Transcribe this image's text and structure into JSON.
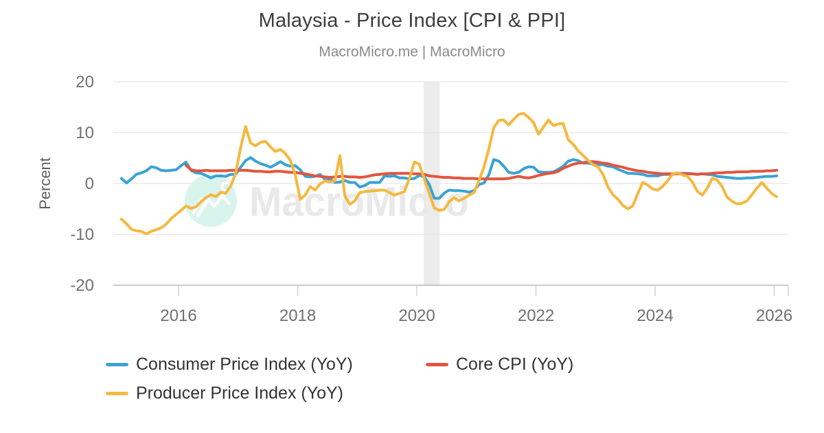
{
  "header": {
    "title": "Malaysia - Price Index [CPI & PPI]",
    "subtitle": "MacroMicro.me | MacroMicro"
  },
  "watermark": {
    "text": "MacroMicro"
  },
  "chart_data": {
    "type": "line",
    "title": "Malaysia - Price Index [CPI & PPI]",
    "xlabel": "",
    "ylabel": "Percent",
    "ylim": [
      -20,
      20
    ],
    "yticks": [
      20,
      10,
      0,
      -10,
      -20
    ],
    "xticks": [
      2016,
      2018,
      2020,
      2022,
      2024,
      2026
    ],
    "grid": true,
    "legend_position": "bottom",
    "x_unit": "decimal_year_monthly",
    "x_step": 0.0833333,
    "recession_band": {
      "from": 2020.115,
      "to": 2020.385,
      "color": "#ececec"
    },
    "series": [
      {
        "name": "Consumer Price Index (YoY)",
        "color": "#3BA2D4",
        "start": 2015.042,
        "values": [
          1.0,
          0.1,
          0.9,
          1.8,
          2.1,
          2.5,
          3.3,
          3.1,
          2.6,
          2.5,
          2.6,
          2.7,
          3.5,
          4.2,
          2.6,
          2.1,
          2.0,
          1.6,
          1.1,
          1.5,
          1.5,
          1.4,
          1.8,
          1.8,
          3.2,
          4.5,
          5.1,
          4.4,
          3.9,
          3.6,
          3.2,
          3.7,
          4.3,
          3.7,
          3.4,
          3.5,
          2.7,
          1.4,
          1.3,
          1.4,
          1.8,
          0.8,
          0.9,
          0.2,
          0.3,
          0.6,
          0.2,
          0.2,
          -0.7,
          -0.4,
          0.2,
          0.2,
          0.2,
          1.5,
          1.4,
          1.5,
          1.1,
          1.1,
          0.9,
          1.0,
          1.6,
          1.3,
          -0.2,
          -2.9,
          -2.9,
          -1.9,
          -1.3,
          -1.4,
          -1.4,
          -1.5,
          -1.7,
          -1.4,
          -0.2,
          0.1,
          1.7,
          4.7,
          4.4,
          3.4,
          2.2,
          2.0,
          2.2,
          2.9,
          3.3,
          3.2,
          2.3,
          2.2,
          2.2,
          2.3,
          2.8,
          3.4,
          4.4,
          4.7,
          4.5,
          4.0,
          4.0,
          3.8,
          3.7,
          3.7,
          3.4,
          3.3,
          2.8,
          2.4,
          2.0,
          2.0,
          1.9,
          1.8,
          1.5,
          1.5,
          1.5,
          1.8,
          1.8,
          1.8,
          2.0,
          2.0,
          2.0,
          1.9,
          1.8,
          1.9,
          1.8,
          1.7,
          1.4,
          1.3,
          1.2,
          1.1,
          1.0,
          1.0,
          1.1,
          1.1,
          1.2,
          1.3,
          1.4,
          1.4,
          1.5
        ]
      },
      {
        "name": "Core CPI (YoY)",
        "color": "#E2553F",
        "start": 2016.125,
        "values": [
          3.6,
          2.7,
          2.5,
          2.5,
          2.6,
          2.5,
          2.5,
          2.5,
          2.5,
          2.6,
          2.6,
          2.6,
          2.6,
          2.5,
          2.4,
          2.4,
          2.3,
          2.3,
          2.4,
          2.4,
          2.3,
          2.2,
          2.2,
          2.0,
          1.9,
          1.7,
          1.5,
          1.4,
          1.3,
          1.2,
          1.3,
          1.4,
          1.4,
          1.3,
          1.3,
          1.2,
          1.3,
          1.5,
          1.7,
          1.8,
          1.9,
          2.0,
          2.0,
          2.0,
          2.0,
          2.0,
          1.9,
          1.9,
          1.8,
          1.5,
          1.4,
          1.3,
          1.2,
          1.2,
          1.1,
          1.1,
          1.0,
          1.0,
          1.0,
          0.9,
          0.9,
          0.9,
          0.9,
          0.9,
          0.9,
          1.0,
          1.2,
          1.4,
          1.2,
          1.1,
          1.3,
          1.6,
          1.8,
          2.0,
          2.1,
          2.4,
          3.0,
          3.4,
          3.8,
          4.0,
          4.1,
          4.3,
          4.3,
          4.2,
          4.0,
          3.9,
          3.6,
          3.4,
          3.2,
          2.9,
          2.7,
          2.5,
          2.4,
          2.2,
          2.1,
          2.0,
          1.9,
          1.9,
          1.9,
          1.9,
          1.9,
          1.9,
          1.9,
          1.8,
          1.9,
          1.9,
          2.0,
          2.1,
          2.1,
          2.2,
          2.2,
          2.3,
          2.3,
          2.3,
          2.4,
          2.4,
          2.4,
          2.5,
          2.5,
          2.6
        ]
      },
      {
        "name": "Producer Price Index (YoY)",
        "color": "#F5B840",
        "start": 2015.042,
        "values": [
          -7.0,
          -7.9,
          -9.0,
          -9.3,
          -9.4,
          -9.9,
          -9.4,
          -9.1,
          -8.7,
          -8.0,
          -6.9,
          -6.1,
          -5.3,
          -4.4,
          -4.9,
          -4.6,
          -3.6,
          -2.8,
          -2.2,
          -2.6,
          -1.7,
          -1.9,
          -0.5,
          2.0,
          7.0,
          11.2,
          8.0,
          7.4,
          8.1,
          8.3,
          7.2,
          6.3,
          6.7,
          5.9,
          4.6,
          1.7,
          -3.1,
          -2.3,
          -0.6,
          -1.3,
          -0.1,
          0.5,
          0.3,
          0.5,
          5.5,
          -2.5,
          -4.1,
          -3.4,
          -1.8,
          -1.6,
          -1.5,
          -1.4,
          -1.3,
          -1.3,
          -1.8,
          -2.3,
          -1.9,
          -1.6,
          1.0,
          4.2,
          3.8,
          0.9,
          -2.0,
          -4.8,
          -5.3,
          -5.1,
          -3.6,
          -2.8,
          -3.4,
          -2.9,
          -2.3,
          -1.8,
          0.5,
          3.2,
          6.8,
          11.0,
          12.4,
          12.5,
          11.5,
          12.6,
          13.6,
          13.8,
          13.0,
          12.0,
          9.7,
          11.1,
          12.5,
          11.4,
          11.7,
          11.8,
          8.6,
          7.7,
          6.4,
          5.5,
          4.5,
          3.7,
          3.3,
          1.8,
          -0.7,
          -2.2,
          -3.1,
          -4.3,
          -5.0,
          -4.4,
          -2.0,
          0.2,
          -0.3,
          -1.1,
          -1.3,
          -0.6,
          0.5,
          1.9,
          2.1,
          1.7,
          1.4,
          0.3,
          -1.5,
          -2.3,
          -0.9,
          1.0,
          0.7,
          -0.6,
          -2.7,
          -3.5,
          -4.0,
          -3.9,
          -3.4,
          -2.2,
          -0.9,
          0.2,
          -0.9,
          -2.0,
          -2.6
        ]
      }
    ]
  },
  "theme": {
    "gridline": "#e5e5e5",
    "axis_line": "#b8b8b8",
    "tick_mark": "#d2d2d2",
    "watermark_circle": "#d9f4ec",
    "watermark_text": "#e9e9e9",
    "watermark_glyph": "#ffffff"
  }
}
